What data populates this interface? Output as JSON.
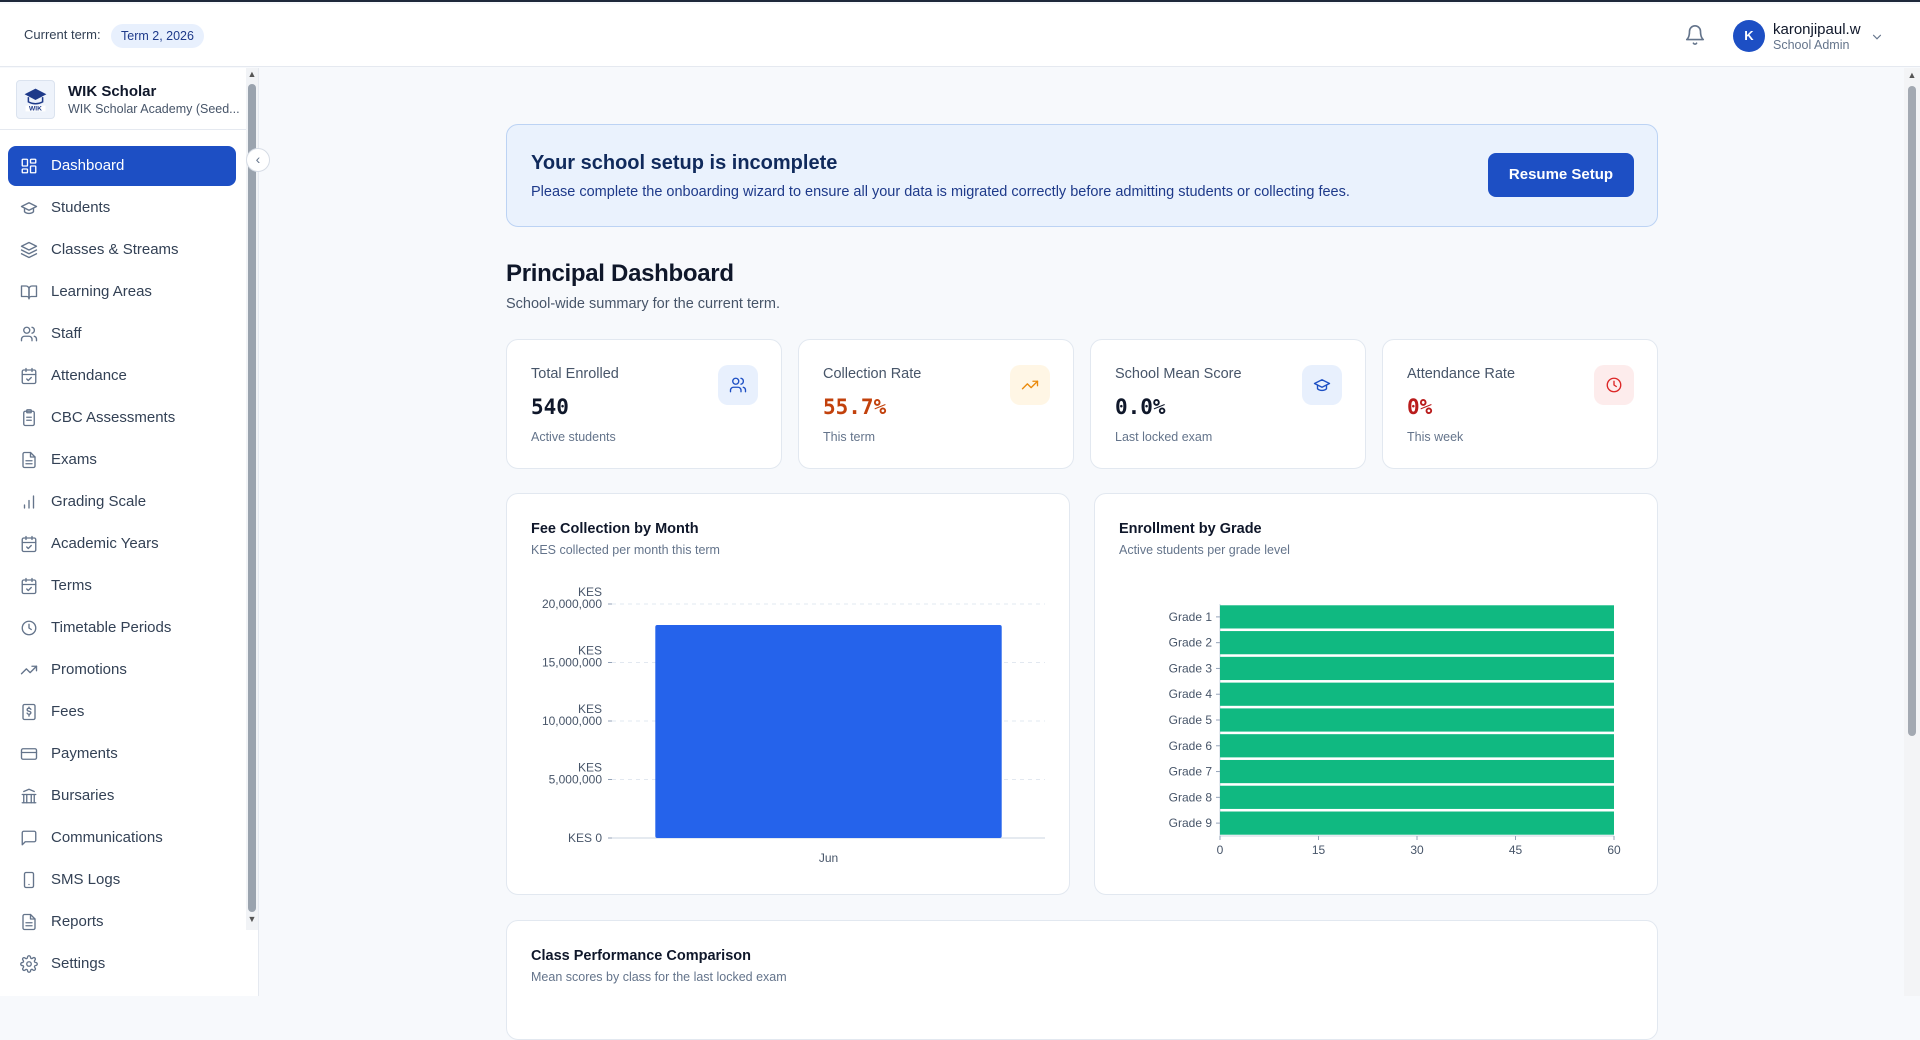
{
  "header": {
    "term_label": "Current term:",
    "term_value": "Term 2, 2026",
    "notifications_icon": "bell-icon",
    "user": {
      "initial": "K",
      "name": "karonjipaul.w",
      "role": "School Admin"
    }
  },
  "brand": {
    "name": "WIK Scholar",
    "subtitle": "WIK Scholar Academy (Seed...",
    "logo_text": "WIK"
  },
  "sidebar": {
    "items": [
      {
        "label": "Dashboard",
        "icon": "grid-icon",
        "active": true
      },
      {
        "label": "Students",
        "icon": "graduation-cap-icon"
      },
      {
        "label": "Classes & Streams",
        "icon": "layers-icon"
      },
      {
        "label": "Learning Areas",
        "icon": "book-open-icon"
      },
      {
        "label": "Staff",
        "icon": "users-icon"
      },
      {
        "label": "Attendance",
        "icon": "calendar-check-icon"
      },
      {
        "label": "CBC Assessments",
        "icon": "clipboard-icon"
      },
      {
        "label": "Exams",
        "icon": "file-text-icon"
      },
      {
        "label": "Grading Scale",
        "icon": "bar-chart-icon"
      },
      {
        "label": "Academic Years",
        "icon": "calendar-check-icon"
      },
      {
        "label": "Terms",
        "icon": "calendar-check-icon"
      },
      {
        "label": "Timetable Periods",
        "icon": "clock-icon"
      },
      {
        "label": "Promotions",
        "icon": "trending-up-icon"
      },
      {
        "label": "Fees",
        "icon": "dollar-file-icon"
      },
      {
        "label": "Payments",
        "icon": "credit-card-icon"
      },
      {
        "label": "Bursaries",
        "icon": "bank-icon"
      },
      {
        "label": "Communications",
        "icon": "message-square-icon"
      },
      {
        "label": "SMS Logs",
        "icon": "smartphone-icon"
      },
      {
        "label": "Reports",
        "icon": "file-text-icon"
      },
      {
        "label": "Settings",
        "icon": "gear-icon"
      }
    ]
  },
  "alert": {
    "title": "Your school setup is incomplete",
    "text": "Please complete the onboarding wizard to ensure all your data is migrated correctly before admitting students or collecting fees.",
    "button": "Resume Setup"
  },
  "page": {
    "title": "Principal Dashboard",
    "subtitle": "School-wide summary for the current term."
  },
  "stats": [
    {
      "title": "Total Enrolled",
      "value": "540",
      "sub": "Active students",
      "icon": "users-icon",
      "value_color": "#0f172a",
      "icon_bg": "#e8f0fd",
      "icon_color": "#1d4fc4"
    },
    {
      "title": "Collection Rate",
      "value": "55.7%",
      "sub": "This term",
      "icon": "trending-up-icon",
      "value_color": "#c2410c",
      "icon_bg": "#fff6e5",
      "icon_color": "#ea8a0c"
    },
    {
      "title": "School Mean Score",
      "value": "0.0%",
      "sub": "Last locked exam",
      "icon": "graduation-cap-icon",
      "value_color": "#0f172a",
      "icon_bg": "#e8f0fd",
      "icon_color": "#1d4fc4"
    },
    {
      "title": "Attendance Rate",
      "value": "0%",
      "sub": "This week",
      "icon": "clock-icon",
      "value_color": "#b91c1c",
      "icon_bg": "#fdecec",
      "icon_color": "#dc2626"
    }
  ],
  "fee_chart": {
    "title": "Fee Collection by Month",
    "subtitle": "KES collected per month this term"
  },
  "enroll_chart": {
    "title": "Enrollment by Grade",
    "subtitle": "Active students per grade level"
  },
  "perf_chart": {
    "title": "Class Performance Comparison",
    "subtitle": "Mean scores by class for the last locked exam"
  },
  "chart_data": [
    {
      "type": "bar",
      "title": "Fee Collection by Month",
      "subtitle": "KES collected per month this term",
      "categories": [
        "Jun"
      ],
      "values": [
        18200000
      ],
      "ylim": [
        0,
        20000000
      ],
      "yticks": [
        0,
        5000000,
        10000000,
        15000000,
        20000000
      ],
      "ytick_labels": [
        [
          "KES 0"
        ],
        [
          "KES",
          "5,000,000"
        ],
        [
          "KES",
          "10,000,000"
        ],
        [
          "KES",
          "15,000,000"
        ],
        [
          "KES",
          "20,000,000"
        ]
      ],
      "color": "#2563eb",
      "grid": true
    },
    {
      "type": "bar",
      "orientation": "horizontal",
      "title": "Enrollment by Grade",
      "subtitle": "Active students per grade level",
      "categories": [
        "Grade 1",
        "Grade 2",
        "Grade 3",
        "Grade 4",
        "Grade 5",
        "Grade 6",
        "Grade 7",
        "Grade 8",
        "Grade 9"
      ],
      "values": [
        60,
        60,
        60,
        60,
        60,
        60,
        60,
        60,
        60
      ],
      "xlim": [
        0,
        60
      ],
      "xticks": [
        0,
        15,
        30,
        45,
        60
      ],
      "color": "#10b981",
      "grid": false
    }
  ]
}
